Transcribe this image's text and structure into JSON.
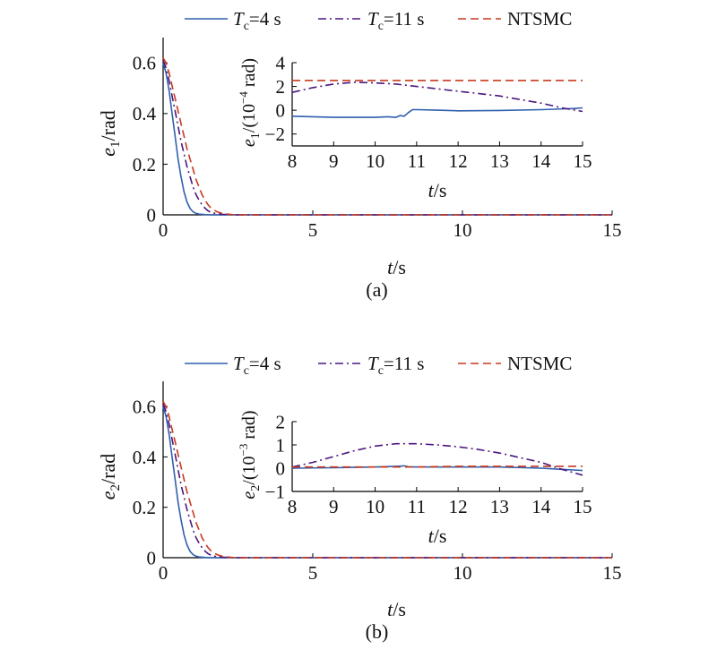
{
  "colors": {
    "tc4": "#2f5fae",
    "tc11": "#4b1780",
    "ntsmc": "#c8391e",
    "axis": "#000000"
  },
  "legend": [
    {
      "key": "tc4",
      "sym": "T",
      "sub": "c",
      "rest": "=4 s",
      "style": "solid"
    },
    {
      "key": "tc11",
      "sym": "T",
      "sub": "c",
      "rest": "=11 s",
      "style": "dashdot"
    },
    {
      "key": "ntsmc",
      "text": "NTSMC",
      "style": "dashed"
    }
  ],
  "chart_data": [
    {
      "type": "line",
      "caption": "(a)",
      "xlabel": {
        "italic": "t",
        "rest": "/s"
      },
      "ylabel": {
        "italic": "e",
        "sub": "1",
        "rest": "/rad"
      },
      "xlim": [
        0,
        15
      ],
      "ylim": [
        0,
        0.7
      ],
      "xticks": [
        0,
        5,
        10,
        15
      ],
      "yticks": [
        0,
        0.2,
        0.4,
        0.6
      ],
      "series": [
        {
          "name": "Tc=4 s",
          "key": "tc4",
          "x": [
            0,
            0.1,
            0.2,
            0.3,
            0.4,
            0.5,
            0.6,
            0.7,
            0.8,
            0.9,
            1.0,
            1.1,
            1.2,
            1.4,
            1.6,
            2.0,
            15
          ],
          "y": [
            0.6,
            0.56,
            0.49,
            0.4,
            0.31,
            0.22,
            0.15,
            0.09,
            0.05,
            0.025,
            0.012,
            0.006,
            0.003,
            0.001,
            0,
            0,
            0
          ]
        },
        {
          "name": "Tc=11 s",
          "key": "tc11",
          "x": [
            0,
            0.1,
            0.2,
            0.3,
            0.4,
            0.5,
            0.6,
            0.7,
            0.8,
            0.9,
            1.0,
            1.1,
            1.2,
            1.3,
            1.4,
            1.5,
            1.6,
            1.8,
            2.0,
            2.4,
            15
          ],
          "y": [
            0.61,
            0.58,
            0.53,
            0.47,
            0.41,
            0.35,
            0.29,
            0.24,
            0.19,
            0.15,
            0.11,
            0.08,
            0.058,
            0.04,
            0.026,
            0.016,
            0.01,
            0.004,
            0.002,
            0,
            0
          ]
        },
        {
          "name": "NTSMC",
          "key": "ntsmc",
          "x": [
            0,
            0.1,
            0.2,
            0.3,
            0.4,
            0.5,
            0.6,
            0.7,
            0.8,
            0.9,
            1.0,
            1.1,
            1.2,
            1.3,
            1.4,
            1.5,
            1.6,
            1.8,
            2.0,
            2.4,
            15
          ],
          "y": [
            0.62,
            0.6,
            0.56,
            0.51,
            0.46,
            0.41,
            0.36,
            0.31,
            0.26,
            0.22,
            0.18,
            0.14,
            0.11,
            0.08,
            0.058,
            0.04,
            0.027,
            0.012,
            0.005,
            0,
            0
          ]
        }
      ],
      "inset": {
        "xlabel": {
          "italic": "t",
          "rest": "/s"
        },
        "ylabel": {
          "italic": "e",
          "sub": "1",
          "rest": "/(10",
          "exp": "−4",
          "rest2": " rad)"
        },
        "xlim": [
          8,
          15
        ],
        "ylim": [
          -3,
          4
        ],
        "xticks": [
          8,
          9,
          10,
          11,
          12,
          13,
          14,
          15
        ],
        "yticks": [
          -2,
          0,
          2,
          4
        ],
        "series": [
          {
            "name": "Tc=4 s",
            "key": "tc4",
            "x": [
              8,
              9,
              10,
              10.3,
              10.5,
              10.6,
              10.7,
              10.8,
              10.9,
              11,
              11.5,
              12,
              13,
              14,
              14.8,
              15
            ],
            "y": [
              -0.5,
              -0.6,
              -0.6,
              -0.55,
              -0.6,
              -0.45,
              -0.5,
              -0.2,
              0.05,
              0.05,
              0,
              -0.05,
              -0.02,
              0.05,
              0.15,
              0.2
            ]
          },
          {
            "name": "Tc=11 s",
            "key": "tc11",
            "x": [
              8,
              8.5,
              9,
              9.5,
              10,
              10.5,
              11,
              12,
              13,
              14,
              14.5,
              15
            ],
            "y": [
              1.5,
              1.9,
              2.2,
              2.35,
              2.3,
              2.2,
              2.0,
              1.6,
              1.2,
              0.6,
              0.2,
              -0.1
            ]
          },
          {
            "name": "NTSMC",
            "key": "ntsmc",
            "x": [
              8,
              15
            ],
            "y": [
              2.5,
              2.5
            ]
          }
        ]
      }
    },
    {
      "type": "line",
      "caption": "(b)",
      "xlabel": {
        "italic": "t",
        "rest": "/s"
      },
      "ylabel": {
        "italic": "e",
        "sub": "2",
        "rest": "/rad"
      },
      "xlim": [
        0,
        15
      ],
      "ylim": [
        0,
        0.7
      ],
      "xticks": [
        0,
        5,
        10,
        15
      ],
      "yticks": [
        0,
        0.2,
        0.4,
        0.6
      ],
      "series": [
        {
          "name": "Tc=4 s",
          "key": "tc4",
          "x": [
            0,
            0.1,
            0.2,
            0.3,
            0.4,
            0.5,
            0.6,
            0.7,
            0.8,
            0.9,
            1.0,
            1.1,
            1.2,
            1.4,
            1.6,
            2.0,
            15
          ],
          "y": [
            0.6,
            0.56,
            0.49,
            0.4,
            0.31,
            0.22,
            0.15,
            0.09,
            0.05,
            0.025,
            0.012,
            0.006,
            0.003,
            0.001,
            0,
            0,
            0
          ]
        },
        {
          "name": "Tc=11 s",
          "key": "tc11",
          "x": [
            0,
            0.1,
            0.2,
            0.3,
            0.4,
            0.5,
            0.6,
            0.7,
            0.8,
            0.9,
            1.0,
            1.1,
            1.2,
            1.3,
            1.4,
            1.5,
            1.6,
            1.8,
            2.0,
            2.4,
            15
          ],
          "y": [
            0.61,
            0.58,
            0.53,
            0.47,
            0.41,
            0.35,
            0.29,
            0.24,
            0.19,
            0.15,
            0.11,
            0.08,
            0.058,
            0.04,
            0.026,
            0.016,
            0.01,
            0.004,
            0.002,
            0,
            0
          ]
        },
        {
          "name": "NTSMC",
          "key": "ntsmc",
          "x": [
            0,
            0.1,
            0.2,
            0.3,
            0.4,
            0.5,
            0.6,
            0.7,
            0.8,
            0.9,
            1.0,
            1.1,
            1.2,
            1.3,
            1.4,
            1.5,
            1.6,
            1.8,
            2.0,
            2.4,
            15
          ],
          "y": [
            0.62,
            0.6,
            0.56,
            0.51,
            0.46,
            0.41,
            0.36,
            0.31,
            0.26,
            0.22,
            0.18,
            0.14,
            0.11,
            0.08,
            0.058,
            0.04,
            0.027,
            0.012,
            0.005,
            0,
            0
          ]
        }
      ],
      "inset": {
        "xlabel": {
          "italic": "t",
          "rest": "/s"
        },
        "ylabel": {
          "italic": "e",
          "sub": "2",
          "rest": "/(10",
          "exp": "−3",
          "rest2": " rad)"
        },
        "xlim": [
          8,
          15
        ],
        "ylim": [
          -1,
          2
        ],
        "xticks": [
          8,
          9,
          10,
          11,
          12,
          13,
          14,
          15
        ],
        "yticks": [
          -1,
          0,
          1,
          2
        ],
        "series": [
          {
            "name": "Tc=4 s",
            "key": "tc4",
            "x": [
              8,
              9,
              10,
              10.5,
              10.7,
              10.8,
              11,
              12,
              13,
              14,
              14.5,
              15
            ],
            "y": [
              0,
              0.02,
              0.05,
              0.08,
              0.1,
              0.06,
              0.05,
              0.05,
              0.05,
              0.0,
              -0.05,
              -0.1
            ]
          },
          {
            "name": "Tc=11 s",
            "key": "tc11",
            "x": [
              8,
              8.5,
              9,
              9.5,
              10,
              10.5,
              11,
              11.5,
              12,
              12.5,
              13,
              13.5,
              14,
              14.5,
              15
            ],
            "y": [
              0.05,
              0.25,
              0.5,
              0.75,
              0.95,
              1.05,
              1.05,
              1.0,
              0.92,
              0.8,
              0.65,
              0.45,
              0.25,
              -0.05,
              -0.3
            ]
          },
          {
            "name": "NTSMC",
            "key": "ntsmc",
            "x": [
              8,
              9,
              10,
              11,
              12,
              13,
              14,
              15
            ],
            "y": [
              0.05,
              0.05,
              0.05,
              0.05,
              0.08,
              0.08,
              0.08,
              0.08
            ]
          }
        ]
      }
    }
  ]
}
